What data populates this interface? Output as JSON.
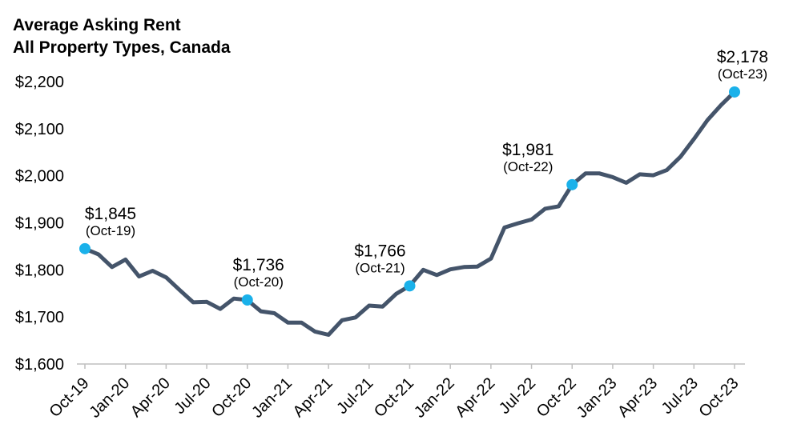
{
  "title": "Average Asking Rent",
  "subtitle": "All Property Types, Canada",
  "chart_data": {
    "type": "line",
    "title": "Average Asking Rent",
    "subtitle": "All Property Types, Canada",
    "xlabel": "",
    "ylabel": "",
    "ylim": [
      1600,
      2200
    ],
    "yticks": [
      "$1,600",
      "$1,700",
      "$1,800",
      "$1,900",
      "$2,000",
      "$2,100",
      "$2,200"
    ],
    "x_tick_labels": [
      "Oct-19",
      "Jan-20",
      "Apr-20",
      "Jul-20",
      "Oct-20",
      "Jan-21",
      "Apr-21",
      "Jul-21",
      "Oct-21",
      "Jan-22",
      "Apr-22",
      "Jul-22",
      "Oct-22",
      "Jan-23",
      "Apr-23",
      "Jul-23",
      "Oct-23"
    ],
    "grid": false,
    "line_color": "#44546a",
    "marker_color": "#1ab1ea",
    "series": [
      {
        "values": [
          1845,
          1833,
          1806,
          1822,
          1786,
          1798,
          1784,
          1757,
          1731,
          1732,
          1717,
          1739,
          1736,
          1712,
          1708,
          1688,
          1688,
          1669,
          1662,
          1693,
          1699,
          1724,
          1722,
          1749,
          1766,
          1800,
          1789,
          1801,
          1806,
          1807,
          1824,
          1890,
          1899,
          1907,
          1930,
          1935,
          1981,
          2005,
          2005,
          1997,
          1985,
          2003,
          2001,
          2012,
          2040,
          2078,
          2118,
          2150,
          2178
        ]
      }
    ],
    "annotations": [
      {
        "index": 0,
        "value": "$1,845",
        "date": "(Oct-19)"
      },
      {
        "index": 12,
        "value": "$1,736",
        "date": "(Oct-20)"
      },
      {
        "index": 24,
        "value": "$1,766",
        "date": "(Oct-21)"
      },
      {
        "index": 36,
        "value": "$1,981",
        "date": "(Oct-22)"
      },
      {
        "index": 48,
        "value": "$2,178",
        "date": "(Oct-23)"
      }
    ]
  }
}
